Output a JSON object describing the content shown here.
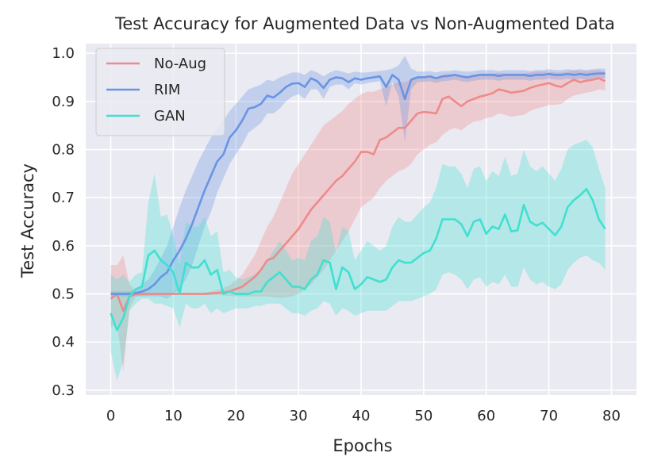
{
  "chart_data": {
    "type": "line",
    "title": "Test Accuracy for Augmented Data vs Non-Augmented Data",
    "xlabel": "Epochs",
    "ylabel": "Test Accuracy",
    "xlim": [
      -4,
      84
    ],
    "ylim": [
      0.29,
      1.02
    ],
    "xticks": [
      0,
      10,
      20,
      30,
      40,
      50,
      60,
      70,
      80
    ],
    "yticks": [
      0.3,
      0.4,
      0.5,
      0.6,
      0.7,
      0.8,
      0.9,
      1.0
    ],
    "grid": true,
    "background": "#eaeaf2",
    "legend_position": "top-left",
    "series": [
      {
        "name": "No-Aug",
        "color": "#ee8a8a",
        "x": [
          0,
          1,
          2,
          3,
          4,
          5,
          6,
          7,
          8,
          9,
          10,
          11,
          12,
          13,
          14,
          15,
          16,
          17,
          18,
          19,
          20,
          21,
          22,
          23,
          24,
          25,
          26,
          27,
          28,
          29,
          30,
          31,
          32,
          33,
          34,
          35,
          36,
          37,
          38,
          39,
          40,
          41,
          42,
          43,
          44,
          45,
          46,
          47,
          48,
          49,
          50,
          51,
          52,
          53,
          54,
          55,
          56,
          57,
          58,
          59,
          60,
          61,
          62,
          63,
          64,
          65,
          66,
          67,
          68,
          69,
          70,
          71,
          72,
          73,
          74,
          75,
          76,
          77,
          78,
          79
        ],
        "mean": [
          0.49,
          0.5,
          0.465,
          0.495,
          0.5,
          0.5,
          0.5,
          0.5,
          0.5,
          0.5,
          0.5,
          0.5,
          0.5,
          0.5,
          0.5,
          0.5,
          0.501,
          0.502,
          0.503,
          0.505,
          0.51,
          0.515,
          0.525,
          0.535,
          0.55,
          0.57,
          0.575,
          0.59,
          0.605,
          0.62,
          0.635,
          0.655,
          0.675,
          0.69,
          0.705,
          0.72,
          0.735,
          0.745,
          0.76,
          0.775,
          0.795,
          0.795,
          0.79,
          0.82,
          0.825,
          0.835,
          0.845,
          0.845,
          0.86,
          0.875,
          0.878,
          0.877,
          0.875,
          0.905,
          0.91,
          0.9,
          0.89,
          0.9,
          0.905,
          0.91,
          0.913,
          0.917,
          0.925,
          0.922,
          0.918,
          0.92,
          0.922,
          0.928,
          0.932,
          0.935,
          0.938,
          0.933,
          0.93,
          0.938,
          0.945,
          0.94,
          0.943,
          0.945,
          0.948,
          0.942
        ],
        "lower": [
          0.43,
          0.44,
          0.34,
          0.47,
          0.495,
          0.497,
          0.498,
          0.498,
          0.498,
          0.498,
          0.498,
          0.498,
          0.498,
          0.498,
          0.498,
          0.498,
          0.498,
          0.498,
          0.497,
          0.496,
          0.495,
          0.495,
          0.495,
          0.495,
          0.495,
          0.495,
          0.493,
          0.492,
          0.493,
          0.495,
          0.5,
          0.51,
          0.52,
          0.535,
          0.55,
          0.57,
          0.59,
          0.61,
          0.63,
          0.655,
          0.68,
          0.69,
          0.7,
          0.72,
          0.735,
          0.745,
          0.755,
          0.76,
          0.77,
          0.79,
          0.8,
          0.81,
          0.815,
          0.83,
          0.84,
          0.845,
          0.84,
          0.85,
          0.858,
          0.86,
          0.865,
          0.868,
          0.875,
          0.872,
          0.868,
          0.87,
          0.872,
          0.88,
          0.885,
          0.888,
          0.893,
          0.893,
          0.895,
          0.905,
          0.912,
          0.915,
          0.918,
          0.92,
          0.925,
          0.922
        ],
        "upper": [
          0.56,
          0.56,
          0.58,
          0.52,
          0.505,
          0.503,
          0.502,
          0.502,
          0.502,
          0.502,
          0.502,
          0.502,
          0.502,
          0.502,
          0.502,
          0.503,
          0.505,
          0.508,
          0.512,
          0.518,
          0.528,
          0.54,
          0.56,
          0.58,
          0.61,
          0.64,
          0.66,
          0.69,
          0.72,
          0.75,
          0.77,
          0.79,
          0.81,
          0.83,
          0.85,
          0.86,
          0.87,
          0.88,
          0.895,
          0.905,
          0.915,
          0.92,
          0.92,
          0.925,
          0.93,
          0.935,
          0.94,
          0.94,
          0.945,
          0.95,
          0.95,
          0.95,
          0.95,
          0.955,
          0.958,
          0.955,
          0.95,
          0.952,
          0.955,
          0.958,
          0.958,
          0.958,
          0.96,
          0.958,
          0.958,
          0.958,
          0.958,
          0.96,
          0.962,
          0.962,
          0.962,
          0.96,
          0.96,
          0.962,
          0.965,
          0.963,
          0.963,
          0.964,
          0.965,
          0.962
        ]
      },
      {
        "name": "RIM",
        "color": "#6994e4",
        "x": [
          0,
          1,
          2,
          3,
          4,
          5,
          6,
          7,
          8,
          9,
          10,
          11,
          12,
          13,
          14,
          15,
          16,
          17,
          18,
          19,
          20,
          21,
          22,
          23,
          24,
          25,
          26,
          27,
          28,
          29,
          30,
          31,
          32,
          33,
          34,
          35,
          36,
          37,
          38,
          39,
          40,
          41,
          42,
          43,
          44,
          45,
          46,
          47,
          48,
          49,
          50,
          51,
          52,
          53,
          54,
          55,
          56,
          57,
          58,
          59,
          60,
          61,
          62,
          63,
          64,
          65,
          66,
          67,
          68,
          69,
          70,
          71,
          72,
          73,
          74,
          75,
          76,
          77,
          78,
          79
        ],
        "mean": [
          0.5,
          0.5,
          0.5,
          0.5,
          0.502,
          0.505,
          0.51,
          0.52,
          0.535,
          0.545,
          0.57,
          0.59,
          0.615,
          0.645,
          0.68,
          0.715,
          0.745,
          0.775,
          0.79,
          0.825,
          0.84,
          0.86,
          0.885,
          0.888,
          0.895,
          0.912,
          0.908,
          0.918,
          0.93,
          0.937,
          0.938,
          0.93,
          0.948,
          0.942,
          0.928,
          0.945,
          0.95,
          0.948,
          0.94,
          0.948,
          0.945,
          0.948,
          0.95,
          0.952,
          0.93,
          0.955,
          0.945,
          0.905,
          0.945,
          0.95,
          0.95,
          0.952,
          0.948,
          0.952,
          0.953,
          0.955,
          0.952,
          0.95,
          0.953,
          0.955,
          0.955,
          0.955,
          0.953,
          0.955,
          0.955,
          0.955,
          0.955,
          0.953,
          0.955,
          0.955,
          0.957,
          0.955,
          0.955,
          0.957,
          0.955,
          0.957,
          0.955,
          0.957,
          0.958,
          0.958
        ],
        "lower": [
          0.495,
          0.495,
          0.495,
          0.495,
          0.495,
          0.495,
          0.495,
          0.495,
          0.495,
          0.49,
          0.5,
          0.51,
          0.53,
          0.56,
          0.6,
          0.64,
          0.67,
          0.71,
          0.74,
          0.77,
          0.79,
          0.81,
          0.835,
          0.845,
          0.855,
          0.875,
          0.875,
          0.885,
          0.9,
          0.91,
          0.915,
          0.905,
          0.925,
          0.925,
          0.905,
          0.93,
          0.935,
          0.935,
          0.925,
          0.938,
          0.935,
          0.938,
          0.94,
          0.942,
          0.89,
          0.94,
          0.91,
          0.815,
          0.925,
          0.94,
          0.94,
          0.942,
          0.938,
          0.942,
          0.943,
          0.945,
          0.942,
          0.94,
          0.943,
          0.945,
          0.945,
          0.945,
          0.943,
          0.945,
          0.945,
          0.945,
          0.945,
          0.943,
          0.945,
          0.945,
          0.947,
          0.945,
          0.945,
          0.947,
          0.945,
          0.947,
          0.945,
          0.947,
          0.948,
          0.948
        ],
        "upper": [
          0.505,
          0.505,
          0.505,
          0.505,
          0.51,
          0.52,
          0.53,
          0.55,
          0.575,
          0.6,
          0.64,
          0.68,
          0.715,
          0.745,
          0.775,
          0.8,
          0.825,
          0.845,
          0.86,
          0.88,
          0.895,
          0.91,
          0.925,
          0.93,
          0.935,
          0.945,
          0.942,
          0.95,
          0.955,
          0.96,
          0.96,
          0.955,
          0.965,
          0.96,
          0.952,
          0.96,
          0.965,
          0.962,
          0.958,
          0.962,
          0.96,
          0.96,
          0.962,
          0.963,
          0.965,
          0.968,
          0.975,
          0.995,
          0.968,
          0.962,
          0.962,
          0.963,
          0.96,
          0.963,
          0.963,
          0.965,
          0.963,
          0.962,
          0.963,
          0.965,
          0.965,
          0.965,
          0.963,
          0.965,
          0.965,
          0.965,
          0.965,
          0.963,
          0.965,
          0.965,
          0.967,
          0.965,
          0.965,
          0.967,
          0.965,
          0.967,
          0.965,
          0.967,
          0.968,
          0.968
        ]
      },
      {
        "name": "GAN",
        "color": "#40e0d0",
        "x": [
          0,
          1,
          2,
          3,
          4,
          5,
          6,
          7,
          8,
          9,
          10,
          11,
          12,
          13,
          14,
          15,
          16,
          17,
          18,
          19,
          20,
          21,
          22,
          23,
          24,
          25,
          26,
          27,
          28,
          29,
          30,
          31,
          32,
          33,
          34,
          35,
          36,
          37,
          38,
          39,
          40,
          41,
          42,
          43,
          44,
          45,
          46,
          47,
          48,
          49,
          50,
          51,
          52,
          53,
          54,
          55,
          56,
          57,
          58,
          59,
          60,
          61,
          62,
          63,
          64,
          65,
          66,
          67,
          68,
          69,
          70,
          71,
          72,
          73,
          74,
          75,
          76,
          77,
          78,
          79
        ],
        "mean": [
          0.46,
          0.425,
          0.45,
          0.495,
          0.51,
          0.515,
          0.58,
          0.59,
          0.57,
          0.56,
          0.545,
          0.5,
          0.565,
          0.555,
          0.555,
          0.57,
          0.54,
          0.55,
          0.5,
          0.505,
          0.5,
          0.5,
          0.5,
          0.505,
          0.505,
          0.525,
          0.535,
          0.545,
          0.53,
          0.515,
          0.515,
          0.51,
          0.53,
          0.54,
          0.57,
          0.565,
          0.51,
          0.555,
          0.545,
          0.51,
          0.52,
          0.535,
          0.53,
          0.525,
          0.53,
          0.555,
          0.57,
          0.565,
          0.565,
          0.575,
          0.585,
          0.59,
          0.615,
          0.655,
          0.655,
          0.655,
          0.645,
          0.62,
          0.65,
          0.655,
          0.625,
          0.64,
          0.635,
          0.665,
          0.63,
          0.632,
          0.685,
          0.65,
          0.642,
          0.648,
          0.635,
          0.622,
          0.64,
          0.68,
          0.695,
          0.705,
          0.718,
          0.695,
          0.655,
          0.635
        ],
        "lower": [
          0.38,
          0.32,
          0.36,
          0.465,
          0.48,
          0.49,
          0.49,
          0.48,
          0.48,
          0.475,
          0.47,
          0.43,
          0.48,
          0.47,
          0.47,
          0.48,
          0.46,
          0.47,
          0.46,
          0.465,
          0.47,
          0.47,
          0.47,
          0.475,
          0.475,
          0.48,
          0.48,
          0.48,
          0.47,
          0.46,
          0.46,
          0.455,
          0.465,
          0.47,
          0.485,
          0.48,
          0.455,
          0.47,
          0.465,
          0.455,
          0.46,
          0.465,
          0.465,
          0.465,
          0.465,
          0.475,
          0.485,
          0.485,
          0.485,
          0.49,
          0.495,
          0.5,
          0.51,
          0.54,
          0.545,
          0.54,
          0.53,
          0.51,
          0.53,
          0.535,
          0.515,
          0.525,
          0.52,
          0.54,
          0.515,
          0.515,
          0.555,
          0.53,
          0.52,
          0.525,
          0.515,
          0.51,
          0.52,
          0.55,
          0.565,
          0.575,
          0.58,
          0.57,
          0.565,
          0.55
        ],
        "upper": [
          0.54,
          0.53,
          0.54,
          0.525,
          0.54,
          0.545,
          0.69,
          0.75,
          0.66,
          0.665,
          0.62,
          0.56,
          0.65,
          0.64,
          0.64,
          0.66,
          0.62,
          0.63,
          0.545,
          0.55,
          0.535,
          0.53,
          0.535,
          0.54,
          0.545,
          0.57,
          0.59,
          0.61,
          0.59,
          0.57,
          0.575,
          0.57,
          0.61,
          0.62,
          0.66,
          0.65,
          0.585,
          0.64,
          0.63,
          0.57,
          0.59,
          0.61,
          0.6,
          0.59,
          0.6,
          0.64,
          0.66,
          0.65,
          0.65,
          0.665,
          0.68,
          0.69,
          0.72,
          0.77,
          0.765,
          0.765,
          0.75,
          0.72,
          0.76,
          0.765,
          0.735,
          0.755,
          0.745,
          0.785,
          0.745,
          0.75,
          0.8,
          0.765,
          0.755,
          0.765,
          0.75,
          0.735,
          0.76,
          0.8,
          0.81,
          0.815,
          0.82,
          0.805,
          0.76,
          0.72
        ]
      }
    ]
  }
}
